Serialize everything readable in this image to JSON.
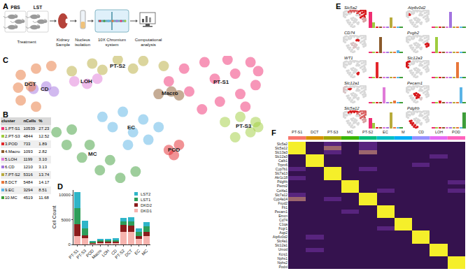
{
  "diagram": {
    "panel": "A",
    "groups": [
      "PBS",
      "LST"
    ],
    "steps": [
      "Treatment",
      "Kidney Sample",
      "Nucleus isolation",
      "10X Chromium system",
      "Computational analysis"
    ]
  },
  "table": {
    "panel": "B",
    "columns": [
      "cluster",
      "nCells",
      "%"
    ],
    "colors": [
      "#ef2e72",
      "#9fcd3e",
      "#e3262b",
      "#8b5a2b",
      "#e07ad8",
      "#a374e0",
      "#b8ab3c",
      "#e8763a",
      "#5ab4e6",
      "#3e9e3a"
    ],
    "rows": [
      [
        "1.PT-S1",
        10539,
        "27.23"
      ],
      [
        "2.PT-S3",
        4844,
        "12.52"
      ],
      [
        "3.POD",
        733,
        "1.89"
      ],
      [
        "4.Macro",
        1093,
        "2.82"
      ],
      [
        "5.LOH",
        1199,
        "3.10"
      ],
      [
        "6.CD",
        1210,
        "3.13"
      ],
      [
        "7.PT-S2",
        5316,
        "13.74"
      ],
      [
        "8.DCT",
        5484,
        "14.17"
      ],
      [
        "9.EC",
        3294,
        "8.51"
      ],
      [
        "10.MC",
        4519,
        "11.68"
      ]
    ]
  },
  "chart_data": [
    {
      "panel": "C",
      "type": "scatter",
      "tick_labels": false,
      "xlim": [
        0,
        100
      ],
      "ylim": [
        0,
        100
      ],
      "series": [
        {
          "name": "PT-S1",
          "color": "#ef2e72",
          "x": [
            62,
            68,
            76,
            85,
            94,
            97,
            96,
            90,
            82,
            75,
            70,
            80,
            88,
            92
          ],
          "y": [
            80,
            90,
            95,
            97,
            95,
            88,
            77,
            70,
            64,
            58,
            72,
            82,
            86,
            60
          ]
        },
        {
          "name": "PT-S3",
          "color": "#9fcd3e",
          "x": [
            84,
            90,
            96,
            94,
            88,
            97
          ],
          "y": [
            48,
            52,
            48,
            40,
            36,
            44
          ]
        },
        {
          "name": "POD",
          "color": "#e3262b",
          "x": [
            62,
            66,
            64
          ],
          "y": [
            26,
            30,
            22
          ]
        },
        {
          "name": "Macro",
          "color": "#8b5a2b",
          "x": [
            58,
            63,
            66
          ],
          "y": [
            70,
            72,
            69
          ]
        },
        {
          "name": "LOH",
          "color": "#e07ad8",
          "x": [
            25,
            30,
            34
          ],
          "y": [
            80,
            78,
            82
          ]
        },
        {
          "name": "CD",
          "color": "#a374e0",
          "x": [
            9,
            14,
            17
          ],
          "y": [
            74,
            76,
            72
          ]
        },
        {
          "name": "PT-S2",
          "color": "#b8ab3c",
          "x": [
            24,
            32,
            42,
            52,
            60,
            36,
            48
          ],
          "y": [
            88,
            94,
            97,
            96,
            92,
            89,
            90
          ]
        },
        {
          "name": "DCT",
          "color": "#e8763a",
          "x": [
            4,
            10,
            16,
            3,
            4,
            10,
            8
          ],
          "y": [
            85,
            90,
            92,
            75,
            65,
            60,
            76
          ]
        },
        {
          "name": "EC",
          "color": "#5ab4e6",
          "x": [
            36,
            44,
            52,
            58,
            48,
            54,
            40,
            46
          ],
          "y": [
            52,
            56,
            50,
            44,
            40,
            34,
            44,
            30
          ]
        },
        {
          "name": "MC",
          "color": "#3e9e3a",
          "x": [
            18,
            22,
            28,
            35,
            43,
            49,
            31,
            24,
            39
          ],
          "y": [
            40,
            30,
            20,
            10,
            4,
            9,
            30,
            42,
            18
          ]
        }
      ]
    },
    {
      "panel": "D",
      "type": "bar",
      "stacked": true,
      "legend": "top right",
      "ylabel": "Cell Count",
      "categories": [
        "PT-S1",
        "PT-S3",
        "POD",
        "Macro",
        "LOH",
        "CD",
        "PT-S2",
        "DCT",
        "EC",
        "MC"
      ],
      "ylim": [
        0,
        11000
      ],
      "yticks": [
        0,
        5000,
        10000
      ],
      "series": [
        {
          "name": "DKD1",
          "color": "#f6b3ae",
          "values": [
            1700,
            1200,
            200,
            300,
            350,
            350,
            2500,
            2600,
            1100,
            1700
          ]
        },
        {
          "name": "DKD2",
          "color": "#8b1c1c",
          "values": [
            2400,
            700,
            150,
            200,
            250,
            250,
            1500,
            1200,
            600,
            900
          ]
        },
        {
          "name": "LST1",
          "color": "#2e9e5a",
          "values": [
            3300,
            1400,
            200,
            300,
            300,
            300,
            700,
            900,
            800,
            1000
          ]
        },
        {
          "name": "LST2",
          "color": "#2fb5c8",
          "values": [
            3139,
            1544,
            183,
            293,
            299,
            310,
            616,
            784,
            794,
            919
          ]
        }
      ]
    },
    {
      "panel": "E",
      "type": "bar",
      "tick_labels": false,
      "categories": [
        "PT-S1",
        "PT-S3",
        "POD",
        "Macro",
        "LOH",
        "CD",
        "PT-S2",
        "DCT",
        "EC",
        "MC"
      ],
      "colors": [
        "#ef2e72",
        "#9fcd3e",
        "#e3262b",
        "#8b5a2b",
        "#e07ad8",
        "#a374e0",
        "#b8ab3c",
        "#e8763a",
        "#5ab4e6",
        "#3e9e3a"
      ],
      "series": [
        {
          "name": "Slc5a2",
          "values": [
            3,
            1,
            0.2,
            0.2,
            0.2,
            0.2,
            2,
            0.2,
            0.2,
            0.2
          ]
        },
        {
          "name": "CD74",
          "values": [
            0.2,
            0.2,
            0.2,
            3,
            0.2,
            0.2,
            0.2,
            0.2,
            0.5,
            0.2
          ]
        },
        {
          "name": "WT1",
          "values": [
            0.2,
            0.2,
            3,
            0.2,
            0.2,
            0.2,
            0.2,
            0.2,
            0.2,
            0.2
          ]
        },
        {
          "name": "Slc12a1",
          "values": [
            0.2,
            0.2,
            0.2,
            0.2,
            3,
            0.2,
            0.2,
            0.5,
            0.2,
            0.2
          ]
        },
        {
          "name": "Slc5a12",
          "values": [
            2,
            1,
            0.2,
            0.2,
            0.2,
            0.2,
            3,
            0.2,
            0.2,
            0.2
          ]
        },
        {
          "name": "Atp6v0d2",
          "values": [
            0.2,
            0.2,
            0.2,
            0.2,
            0.2,
            3,
            0.2,
            0.2,
            0.2,
            0.2
          ]
        },
        {
          "name": "Pvgb2",
          "values": [
            0.2,
            3,
            0.2,
            0.2,
            0.2,
            0.2,
            0.2,
            0.2,
            0.2,
            0.2
          ]
        },
        {
          "name": "Slc12a3",
          "values": [
            0.2,
            0.2,
            0.2,
            0.2,
            0.2,
            0.2,
            0.2,
            3,
            0.2,
            0.2
          ]
        },
        {
          "name": "Pecam1",
          "values": [
            0.2,
            0.2,
            0.5,
            0.2,
            0.2,
            0.2,
            0.2,
            0.2,
            3,
            0.2
          ]
        },
        {
          "name": "Pdgfrb",
          "values": [
            0.2,
            0.2,
            0.2,
            0.2,
            0.2,
            0.2,
            0.2,
            0.2,
            0.2,
            3
          ]
        }
      ]
    },
    {
      "panel": "F",
      "type": "heatmap",
      "tick_labels": "y",
      "categories": [
        "PT-S1",
        "DCT",
        "PT-S3",
        "MC",
        "PT-S2",
        "EC",
        "M",
        "CD",
        "LOH",
        "POD"
      ],
      "colors": [
        "#f8766d",
        "#d89000",
        "#a3a500",
        "#39b600",
        "#00bf7d",
        "#00bfc4",
        "#00b0f6",
        "#9590ff",
        "#e76bf3",
        "#ff62bc"
      ],
      "rows": [
        "Slc5a2",
        "Slc5a12",
        "Slc13a3",
        "Slc12a3",
        "Calb1",
        "Trpm6",
        "Cyp7b1",
        "Slc7a13",
        "Akr1c18",
        "Pdgfrb",
        "Piezo2",
        "Col4a1",
        "Slc7a12",
        "Cyp4a14",
        "Fxyd2",
        "Flt1",
        "Pecam1",
        "Emcn",
        "Cd74",
        "C1qa",
        "Fcgr1",
        "Aqp2",
        "Atp6v0d2",
        "Slc4a1",
        "Slc12a1",
        "Umod",
        "Kcnj1",
        "Nphs1",
        "Nphs2",
        "Podxl"
      ],
      "values": [
        [
          2,
          -1,
          0,
          -1,
          0,
          -1,
          -1,
          -1,
          -1,
          -1
        ],
        [
          2,
          -1,
          1,
          -1,
          0,
          -1,
          -1,
          -1,
          -1,
          -1
        ],
        [
          2,
          -1,
          0,
          -1,
          1,
          -1,
          -1,
          -1,
          -1,
          -1
        ],
        [
          -1,
          2,
          -1,
          -1,
          -1,
          -1,
          -1,
          -1,
          0,
          -1
        ],
        [
          -1,
          2,
          -1,
          -1,
          -1,
          -1,
          -1,
          -1,
          -1,
          -1
        ],
        [
          -1,
          2,
          -1,
          -1,
          -1,
          -1,
          -1,
          0,
          -1,
          -1
        ],
        [
          0,
          -1,
          2,
          -1,
          0,
          -1,
          -1,
          -1,
          -1,
          -1
        ],
        [
          -1,
          -1,
          2,
          -1,
          -1,
          -1,
          -1,
          -1,
          -1,
          -1
        ],
        [
          0,
          -1,
          2,
          -1,
          -1,
          -1,
          -1,
          -1,
          -1,
          -1
        ],
        [
          -1,
          -1,
          -1,
          2,
          -1,
          -1,
          -1,
          -1,
          -1,
          0
        ],
        [
          -1,
          -1,
          -1,
          2,
          -1,
          -1,
          -1,
          -1,
          -1,
          -1
        ],
        [
          -1,
          -1,
          -1,
          2,
          -1,
          0,
          -1,
          -1,
          -1,
          0
        ],
        [
          0,
          -1,
          -1,
          -1,
          2,
          -1,
          -1,
          -1,
          -1,
          -1
        ],
        [
          1,
          -1,
          0,
          -1,
          2,
          -1,
          -1,
          -1,
          -1,
          -1
        ],
        [
          -1,
          -1,
          -1,
          -1,
          2,
          -1,
          -1,
          -1,
          -1,
          -1
        ],
        [
          -1,
          -1,
          -1,
          -1,
          -1,
          2,
          -1,
          -1,
          -1,
          -1
        ],
        [
          -1,
          -1,
          -1,
          0,
          -1,
          2,
          -1,
          -1,
          -1,
          -1
        ],
        [
          -1,
          -1,
          -1,
          -1,
          -1,
          2,
          -1,
          -1,
          -1,
          -1
        ],
        [
          -1,
          -1,
          -1,
          -1,
          -1,
          -1,
          2,
          -1,
          -1,
          -1
        ],
        [
          -1,
          -1,
          -1,
          -1,
          -1,
          -1,
          2,
          -1,
          -1,
          -1
        ],
        [
          -1,
          -1,
          -1,
          -1,
          -1,
          0,
          2,
          -1,
          -1,
          -1
        ],
        [
          -1,
          -1,
          -1,
          -1,
          -1,
          -1,
          -1,
          2,
          -1,
          -1
        ],
        [
          -1,
          0,
          -1,
          -1,
          -1,
          -1,
          -1,
          2,
          -1,
          -1
        ],
        [
          -1,
          -1,
          -1,
          -1,
          -1,
          -1,
          -1,
          2,
          -1,
          -1
        ],
        [
          -1,
          -1,
          -1,
          -1,
          -1,
          -1,
          -1,
          -1,
          2,
          -1
        ],
        [
          -1,
          0,
          -1,
          -1,
          -1,
          -1,
          -1,
          -1,
          2,
          -1
        ],
        [
          -1,
          -1,
          -1,
          -1,
          -1,
          -1,
          -1,
          -1,
          2,
          -1
        ],
        [
          -1,
          -1,
          -1,
          -1,
          -1,
          -1,
          -1,
          -1,
          -1,
          2
        ],
        [
          -1,
          -1,
          -1,
          -1,
          -1,
          -1,
          -1,
          -1,
          -1,
          2
        ],
        [
          -1,
          -1,
          -1,
          -1,
          -1,
          -1,
          -1,
          -1,
          -1,
          2
        ]
      ]
    }
  ]
}
